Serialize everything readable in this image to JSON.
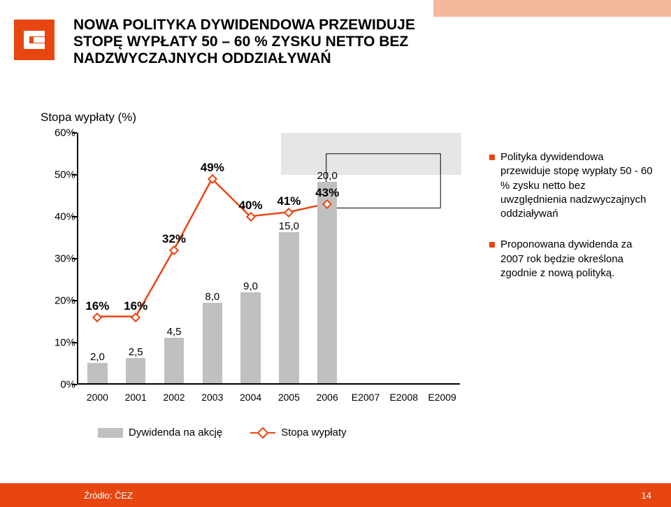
{
  "header": {
    "title": "NOWA POLITYKA DYWIDENDOWA PRZEWIDUJE STOPĘ WYPŁATY 50 – 60 % ZYSKU NETTO BEZ NADZWYCZAJNYCH ODDZIAŁYWAŃ",
    "title_fontsize": 21
  },
  "subtitle": "Stopa wypłaty (%)",
  "chart": {
    "type": "bar+line",
    "categories": [
      "2000",
      "2001",
      "2002",
      "2003",
      "2004",
      "2005",
      "2006",
      "E2007",
      "E2008",
      "E2009"
    ],
    "bars": {
      "values": [
        2.0,
        2.5,
        4.5,
        8.0,
        9.0,
        15.0,
        20.0,
        null,
        null,
        null
      ],
      "labels": [
        "2,0",
        "2,5",
        "4,5",
        "8,0",
        "9,0",
        "15,0",
        "20,0",
        "",
        "",
        ""
      ],
      "color": "#c0c0c0",
      "bar_width_frac": 0.52,
      "value_axis_max": 25.0
    },
    "line": {
      "values": [
        16,
        16,
        32,
        49,
        40,
        41,
        43,
        null,
        null,
        null
      ],
      "labels": [
        "16%",
        "16%",
        "32%",
        "49%",
        "40%",
        "41%",
        "43%",
        "",
        "",
        ""
      ],
      "color": "#e84610",
      "stroke_width": 2.5,
      "marker_size": 10,
      "value_axis_max": 60
    },
    "y_ticks": {
      "values": [
        0,
        10,
        20,
        30,
        40,
        50,
        60
      ],
      "labels": [
        "0%",
        "10%",
        "20%",
        "30%",
        "40%",
        "50%",
        "60%"
      ]
    },
    "background_color": "#ffffff",
    "axis_color": "#000000",
    "label_fontsize": 15,
    "line_label_fontsize": 17
  },
  "highlight_band": {
    "y_from": 50,
    "y_to": 60,
    "color": "#e6e6e6",
    "x_from_index": 5.3,
    "x_to_index": 10
  },
  "callout_box": {
    "x_from_index": 6.5,
    "x_to_index": 9.5,
    "y_from": 42,
    "y_to": 55
  },
  "legend": {
    "bar_label": "Dywidenda na akcję",
    "line_label": "Stopa wypłaty"
  },
  "bullets": [
    "Polityka dywidendowa przewiduje stopę wypłaty 50 - 60 % zysku netto bez uwzględnienia nadzwyczajnych oddziaływań",
    "Proponowana dywidenda za 2007 rok będzie określona zgodnie z nową polityką."
  ],
  "footer": {
    "source": "Źródło: ČEZ",
    "page": "14",
    "bar_color": "#e84610",
    "text_color": "#ffffff"
  },
  "brand": {
    "accent": "#e84610"
  }
}
